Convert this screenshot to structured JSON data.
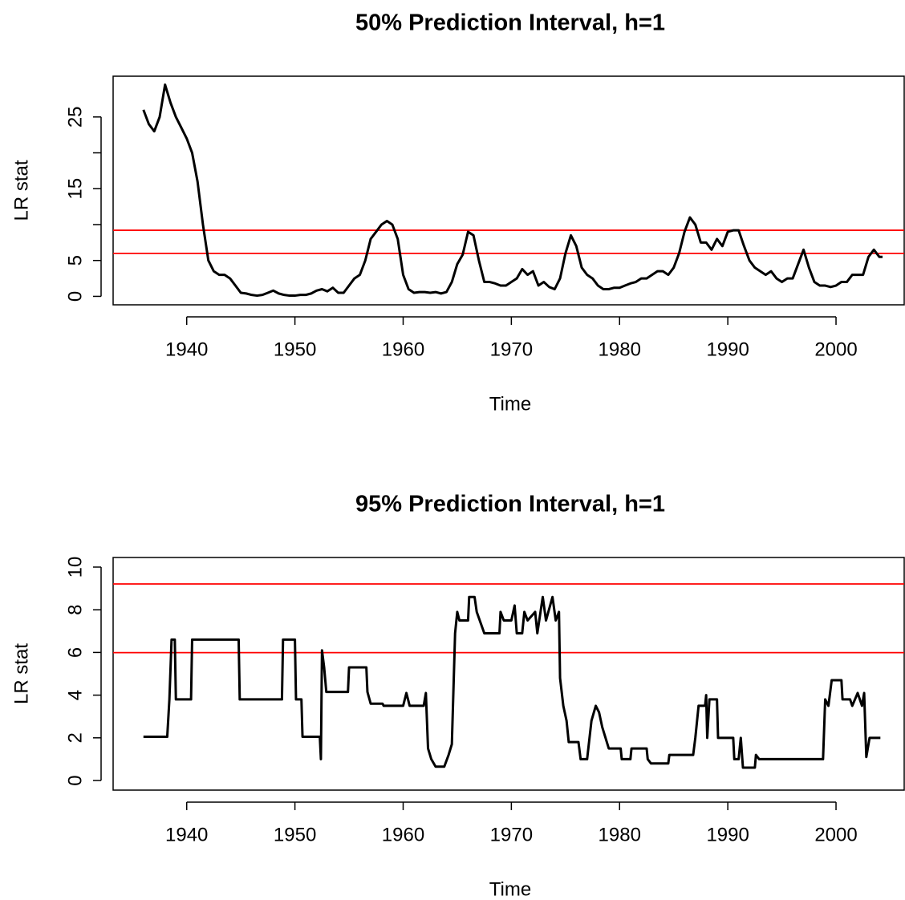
{
  "chart_data": [
    {
      "type": "line",
      "title": "50% Prediction Interval, h=1",
      "xlabel": "Time",
      "ylabel": "LR stat",
      "x": [
        1936.0,
        1936.5,
        1937.0,
        1937.5,
        1938.0,
        1938.5,
        1939.0,
        1939.5,
        1940.0,
        1940.5,
        1941.0,
        1941.5,
        1942.0,
        1942.5,
        1943.0,
        1943.5,
        1944.0,
        1944.5,
        1945.0,
        1945.5,
        1946.0,
        1946.5,
        1947.0,
        1947.5,
        1948.0,
        1948.5,
        1949.0,
        1949.5,
        1950.0,
        1950.5,
        1951.0,
        1951.5,
        1952.0,
        1952.5,
        1953.0,
        1953.5,
        1954.0,
        1954.5,
        1955.0,
        1955.5,
        1956.0,
        1956.5,
        1957.0,
        1957.5,
        1958.0,
        1958.5,
        1959.0,
        1959.5,
        1960.0,
        1960.5,
        1961.0,
        1961.5,
        1962.0,
        1962.5,
        1963.0,
        1963.5,
        1964.0,
        1964.5,
        1965.0,
        1965.5,
        1966.0,
        1966.5,
        1967.0,
        1967.5,
        1968.0,
        1968.5,
        1969.0,
        1969.5,
        1970.0,
        1970.5,
        1971.0,
        1971.5,
        1972.0,
        1972.5,
        1973.0,
        1973.5,
        1974.0,
        1974.5,
        1975.0,
        1975.5,
        1976.0,
        1976.5,
        1977.0,
        1977.5,
        1978.0,
        1978.5,
        1979.0,
        1979.5,
        1980.0,
        1980.5,
        1981.0,
        1981.5,
        1982.0,
        1982.5,
        1983.0,
        1983.5,
        1984.0,
        1984.5,
        1985.0,
        1985.5,
        1986.0,
        1986.5,
        1987.0,
        1987.5,
        1988.0,
        1988.5,
        1989.0,
        1989.5,
        1990.0,
        1990.5,
        1991.0,
        1991.5,
        1992.0,
        1992.5,
        1993.0,
        1993.5,
        1994.0,
        1994.5,
        1995.0,
        1995.5,
        1996.0,
        1996.5,
        1997.0,
        1997.5,
        1998.0,
        1998.5,
        1999.0,
        1999.5,
        2000.0,
        2000.5,
        2001.0,
        2001.5,
        2002.0,
        2002.5,
        2003.0,
        2003.5,
        2004.0,
        2004.3
      ],
      "series": [
        {
          "color": "#000000",
          "values": [
            26,
            24,
            23,
            25,
            29.5,
            27,
            25,
            23.5,
            22,
            20,
            16,
            10,
            5,
            3.5,
            3,
            3,
            2.5,
            1.5,
            0.5,
            0.4,
            0.2,
            0.1,
            0.2,
            0.5,
            0.8,
            0.4,
            0.2,
            0.1,
            0.1,
            0.2,
            0.2,
            0.4,
            0.8,
            1.0,
            0.7,
            1.2,
            0.5,
            0.5,
            1.5,
            2.5,
            3,
            5,
            8,
            9,
            10,
            10.5,
            10,
            8,
            3,
            1,
            0.5,
            0.6,
            0.6,
            0.5,
            0.6,
            0.4,
            0.6,
            2,
            4.5,
            5.8,
            9,
            8.5,
            5,
            2,
            2,
            1.8,
            1.5,
            1.5,
            2.0,
            2.5,
            3.8,
            3.0,
            3.5,
            1.5,
            2.0,
            1.3,
            1.0,
            2.5,
            6,
            8.5,
            7,
            4,
            3,
            2.5,
            1.5,
            1.0,
            1.0,
            1.2,
            1.2,
            1.5,
            1.8,
            2.0,
            2.5,
            2.5,
            3,
            3.5,
            3.5,
            3.0,
            4,
            6,
            9,
            11,
            10,
            7.5,
            7.5,
            6.5,
            8,
            7,
            9,
            9.2,
            9.2,
            7,
            5,
            4,
            3.5,
            3.0,
            3.5,
            2.5,
            2.0,
            2.5,
            2.5,
            4.5,
            6.5,
            4,
            2,
            1.5,
            1.5,
            1.3,
            1.5,
            2,
            2,
            3,
            3,
            3,
            5.5,
            6.5,
            5.5,
            5.5
          ]
        }
      ],
      "hlines": [
        {
          "value": 9.21,
          "color": "#ff0000"
        },
        {
          "value": 5.99,
          "color": "#ff0000"
        }
      ],
      "xlim": [
        1933.2,
        2006.3
      ],
      "xticks": [
        1940,
        1950,
        1960,
        1970,
        1980,
        1990,
        2000
      ],
      "ylim": [
        -1.18,
        30.68
      ],
      "yticks": [
        0,
        5,
        {
          "value": 10,
          "label": null
        },
        15,
        {
          "value": 20,
          "label": null
        },
        25
      ]
    },
    {
      "type": "line",
      "title": "95% Prediction Interval, h=1",
      "xlabel": "Time",
      "ylabel": "LR stat",
      "x": [
        1936.0,
        1938.2,
        1938.4,
        1938.6,
        1938.9,
        1939.0,
        1940.4,
        1940.5,
        1944.8,
        1944.9,
        1948.8,
        1948.9,
        1950.0,
        1950.1,
        1950.6,
        1950.7,
        1952.3,
        1952.4,
        1952.5,
        1952.7,
        1952.9,
        1954.9,
        1955.0,
        1956.6,
        1956.7,
        1957.0,
        1958.1,
        1958.2,
        1960.0,
        1960.3,
        1960.6,
        1961.9,
        1962.1,
        1962.3,
        1962.6,
        1963.0,
        1963.8,
        1964.2,
        1964.5,
        1964.8,
        1965.0,
        1965.2,
        1966.0,
        1966.1,
        1966.6,
        1966.8,
        1967.5,
        1968.9,
        1969.0,
        1969.3,
        1970.0,
        1970.3,
        1970.5,
        1971.0,
        1971.2,
        1971.5,
        1972.2,
        1972.4,
        1972.9,
        1973.2,
        1973.8,
        1974.1,
        1974.4,
        1974.5,
        1974.8,
        1975.1,
        1975.3,
        1976.2,
        1976.4,
        1977.0,
        1977.4,
        1977.8,
        1978.1,
        1978.4,
        1978.7,
        1979.0,
        1980.1,
        1980.2,
        1981.0,
        1981.1,
        1982.5,
        1982.6,
        1982.9,
        1984.5,
        1984.6,
        1986.8,
        1987.0,
        1987.3,
        1987.9,
        1988.0,
        1988.1,
        1988.3,
        1989.0,
        1989.1,
        1990.5,
        1990.6,
        1991.0,
        1991.2,
        1991.4,
        1992.5,
        1992.6,
        1992.9,
        1998.8,
        1999.0,
        1999.3,
        1999.6,
        2000.5,
        2000.6,
        2001.3,
        2001.5,
        2002.0,
        2002.4,
        2002.6,
        2002.8,
        2003.1,
        2004.1
      ],
      "series": [
        {
          "color": "#000000",
          "values": [
            2.05,
            2.05,
            3.8,
            6.6,
            6.6,
            3.8,
            3.8,
            6.6,
            6.6,
            3.8,
            3.8,
            6.6,
            6.6,
            3.8,
            3.8,
            2.05,
            2.05,
            1.0,
            6.1,
            5.3,
            4.15,
            4.15,
            5.3,
            5.3,
            4.15,
            3.6,
            3.6,
            3.5,
            3.5,
            4.1,
            3.5,
            3.5,
            4.1,
            1.5,
            1.0,
            0.65,
            0.65,
            1.2,
            1.7,
            6.9,
            7.9,
            7.5,
            7.5,
            8.6,
            8.6,
            7.9,
            6.9,
            6.9,
            7.9,
            7.5,
            7.5,
            8.2,
            6.9,
            6.9,
            7.9,
            7.5,
            7.9,
            6.9,
            8.6,
            7.5,
            8.6,
            7.5,
            7.9,
            4.8,
            3.5,
            2.8,
            1.8,
            1.8,
            1.0,
            1.0,
            2.8,
            3.5,
            3.2,
            2.5,
            2.0,
            1.5,
            1.5,
            1.0,
            1.0,
            1.5,
            1.5,
            1.0,
            0.8,
            0.8,
            1.2,
            1.2,
            2.0,
            3.5,
            3.5,
            4.0,
            2.0,
            3.8,
            3.8,
            2.0,
            2.0,
            1.0,
            1.0,
            2.0,
            0.6,
            0.6,
            1.2,
            1.0,
            1.0,
            3.8,
            3.5,
            4.7,
            4.7,
            3.8,
            3.8,
            3.5,
            4.1,
            3.5,
            4.1,
            1.1,
            2.0,
            2.0
          ]
        }
      ],
      "hlines": [
        {
          "value": 9.21,
          "color": "#ff0000"
        },
        {
          "value": 5.99,
          "color": "#ff0000"
        }
      ],
      "xlim": [
        1933.2,
        2006.3
      ],
      "xticks": [
        1940,
        1950,
        1960,
        1970,
        1980,
        1990,
        2000
      ],
      "ylim": [
        -0.45,
        10.45
      ],
      "yticks": [
        0,
        2,
        4,
        6,
        8,
        10
      ]
    }
  ]
}
